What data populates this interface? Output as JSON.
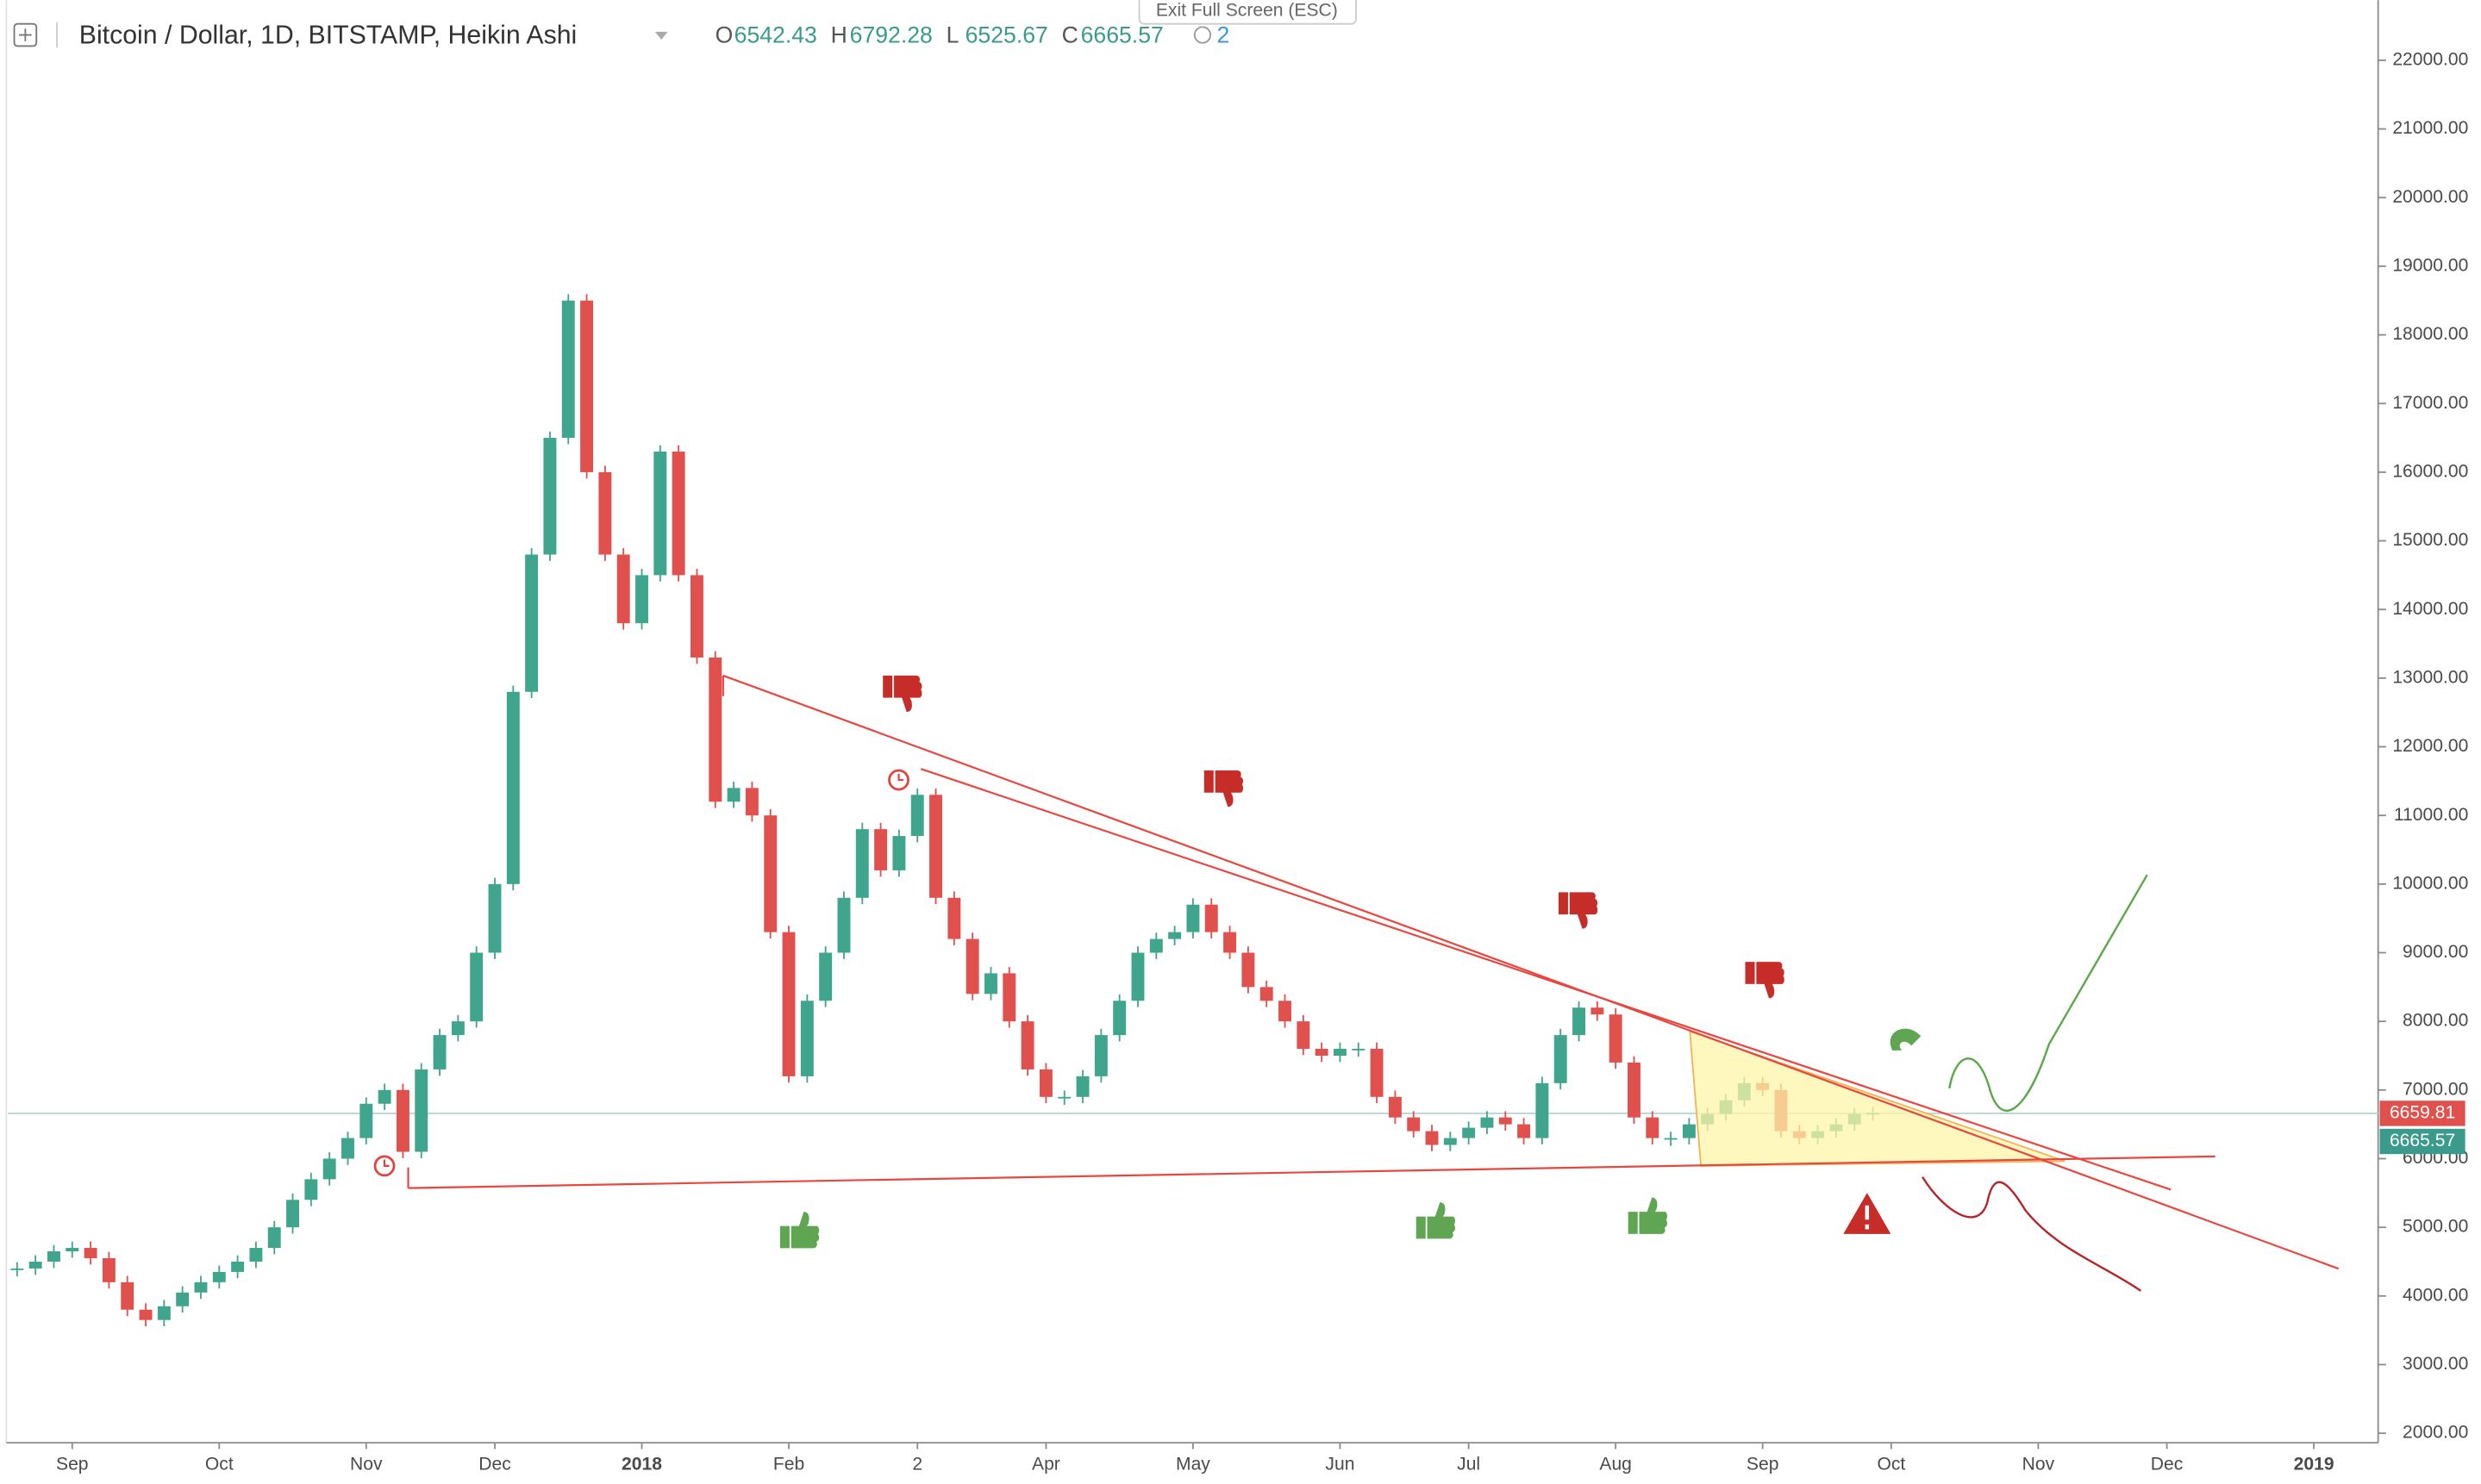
{
  "ui": {
    "exit_button": "Exit Full Screen (ESC)"
  },
  "chart_data": {
    "type": "candlestick",
    "title": "Bitcoin / Dollar, 1D, BITSTAMP, Heikin Ashi",
    "ohlc": [
      {
        "label": "O",
        "value": 6542.43
      },
      {
        "label": "H",
        "value": 6792.28
      },
      {
        "label": "L",
        "value": 6525.67
      },
      {
        "label": "C",
        "value": 6665.57
      }
    ],
    "alert_count": 2,
    "up_color": "#3fa58c",
    "down_color": "#e0504c",
    "categories": [
      null,
      null,
      null,
      "Sep",
      null,
      null,
      null,
      null,
      null,
      null,
      null,
      "Oct",
      null,
      null,
      null,
      null,
      null,
      null,
      null,
      "Nov",
      null,
      null,
      null,
      null,
      null,
      null,
      "Dec",
      null,
      null,
      null,
      null,
      null,
      null,
      null,
      "2018",
      null,
      null,
      null,
      null,
      null,
      null,
      null,
      "Feb",
      null,
      null,
      null,
      null,
      null,
      null,
      "2",
      null,
      null,
      null,
      null,
      null,
      null,
      "Apr",
      null,
      null,
      null,
      null,
      null,
      null,
      null,
      "May",
      null,
      null,
      null,
      null,
      null,
      null,
      null,
      "Jun",
      null,
      null,
      null,
      null,
      null,
      null,
      "Jul",
      null,
      null,
      null,
      null,
      null,
      null,
      null,
      "Aug",
      null,
      null,
      null,
      null,
      null,
      null,
      null,
      "Sep",
      null,
      null,
      null,
      null,
      null,
      null,
      "Oct",
      null,
      null,
      null,
      null,
      null,
      null,
      null,
      "Nov",
      null,
      null,
      null,
      null,
      null,
      null,
      "Dec",
      null,
      null,
      null,
      null,
      null,
      null,
      null,
      "2019",
      null,
      null,
      null
    ],
    "values": [
      4400,
      4500,
      4650,
      4700,
      4550,
      4200,
      3800,
      3650,
      3850,
      4050,
      4200,
      4350,
      4500,
      4700,
      5000,
      5400,
      5700,
      6000,
      6300,
      6800,
      7000,
      6100,
      7300,
      7800,
      8000,
      9000,
      10000,
      12800,
      14800,
      16500,
      18500,
      16000,
      14800,
      13800,
      14500,
      16300,
      14500,
      13300,
      11200,
      11400,
      11000,
      9300,
      7200,
      8300,
      9000,
      9800,
      10800,
      10200,
      10700,
      11300,
      9800,
      9200,
      8400,
      8700,
      8000,
      7300,
      6900,
      6900,
      7200,
      7800,
      8300,
      9000,
      9200,
      9300,
      9700,
      9300,
      9000,
      8500,
      8300,
      8000,
      7600,
      7500,
      7600,
      7600,
      6900,
      6600,
      6400,
      6200,
      6300,
      6450,
      6600,
      6500,
      6300,
      7100,
      7800,
      8200,
      8100,
      7400,
      6600,
      6300,
      6300,
      6500,
      6650,
      6850,
      7100,
      7000,
      6400,
      6300,
      6400,
      6500,
      6650,
      6665.57,
      null,
      null,
      null,
      null,
      null,
      null,
      null,
      null,
      null,
      null,
      null,
      null,
      null,
      null,
      null,
      null,
      null,
      null,
      null,
      null,
      null,
      null,
      null,
      null,
      null,
      null,
      null
    ],
    "ylim": [
      1862,
      22876
    ],
    "yticks": [
      {
        "value": 2000,
        "label": "2000.00"
      },
      {
        "value": 3000,
        "label": "3000.00"
      },
      {
        "value": 4000,
        "label": "4000.00"
      },
      {
        "value": 5000,
        "label": "5000.00"
      },
      {
        "value": 6000,
        "label": "6000.00"
      },
      {
        "value": 7000,
        "label": "7000.00"
      },
      {
        "value": 8000,
        "label": "8000.00"
      },
      {
        "value": 9000,
        "label": "9000.00"
      },
      {
        "value": 10000,
        "label": "10000.00"
      },
      {
        "value": 11000,
        "label": "11000.00"
      },
      {
        "value": 12000,
        "label": "12000.00"
      },
      {
        "value": 13000,
        "label": "13000.00"
      },
      {
        "value": 14000,
        "label": "14000.00"
      },
      {
        "value": 15000,
        "label": "15000.00"
      },
      {
        "value": 16000,
        "label": "16000.00"
      },
      {
        "value": 17000,
        "label": "17000.00"
      },
      {
        "value": 18000,
        "label": "18000.00"
      },
      {
        "value": 19000,
        "label": "19000.00"
      },
      {
        "value": 20000,
        "label": "20000.00"
      },
      {
        "value": 21000,
        "label": "21000.00"
      },
      {
        "value": 22000,
        "label": "22000.00"
      }
    ],
    "price_labels": [
      {
        "value": 6659.81,
        "color": "#e0504c"
      },
      {
        "value": 6665.57,
        "color": "#3a9b8c"
      }
    ],
    "grid": false
  }
}
